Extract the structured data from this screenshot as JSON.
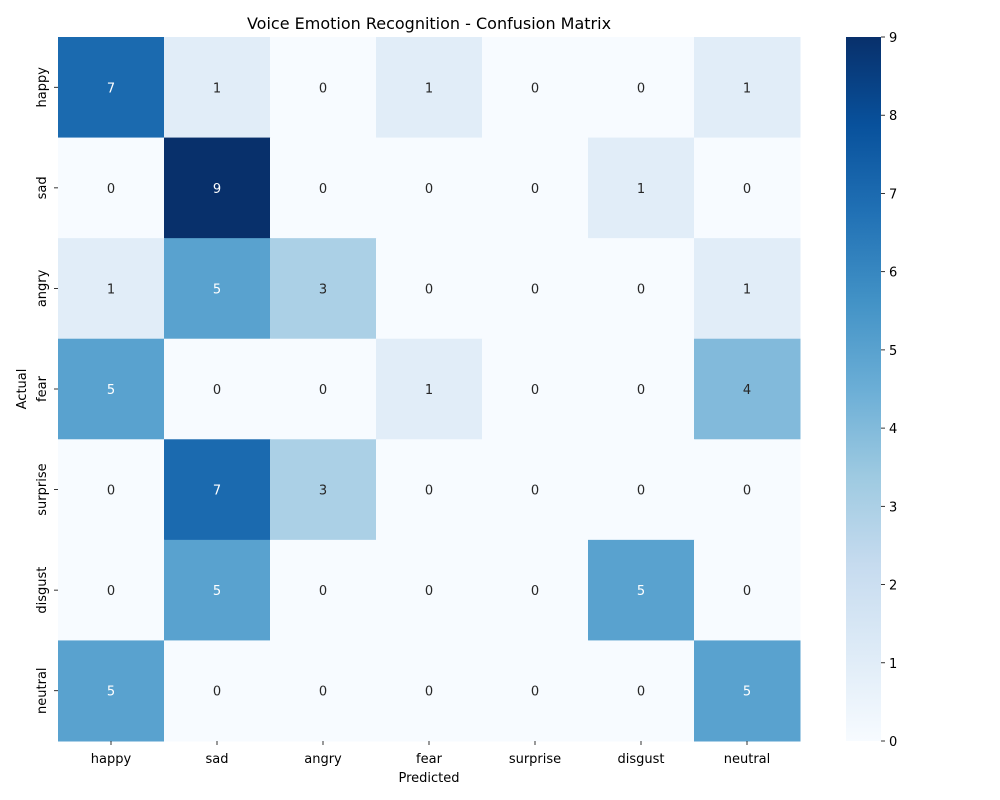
{
  "chart_data": {
    "type": "heatmap",
    "title": "Voice Emotion Recognition - Confusion Matrix",
    "xlabel": "Predicted",
    "ylabel": "Actual",
    "x_categories": [
      "happy",
      "sad",
      "angry",
      "fear",
      "surprise",
      "disgust",
      "neutral"
    ],
    "y_categories": [
      "happy",
      "sad",
      "angry",
      "fear",
      "surprise",
      "disgust",
      "neutral"
    ],
    "values": [
      [
        7,
        1,
        0,
        1,
        0,
        0,
        1
      ],
      [
        0,
        9,
        0,
        0,
        0,
        1,
        0
      ],
      [
        1,
        5,
        3,
        0,
        0,
        0,
        1
      ],
      [
        5,
        0,
        0,
        1,
        0,
        0,
        4
      ],
      [
        0,
        7,
        3,
        0,
        0,
        0,
        0
      ],
      [
        0,
        5,
        0,
        0,
        0,
        5,
        0
      ],
      [
        5,
        0,
        0,
        0,
        0,
        0,
        5
      ]
    ],
    "colorbar": {
      "min": 0,
      "max": 9,
      "ticks": [
        0,
        1,
        2,
        3,
        4,
        5,
        6,
        7,
        8,
        9
      ]
    },
    "colormap": "Blues",
    "colors": [
      "#f7fbff",
      "#deebf7",
      "#c6dbef",
      "#9ecae1",
      "#6baed6",
      "#4292c6",
      "#2171b5",
      "#08519c",
      "#08306b"
    ]
  }
}
